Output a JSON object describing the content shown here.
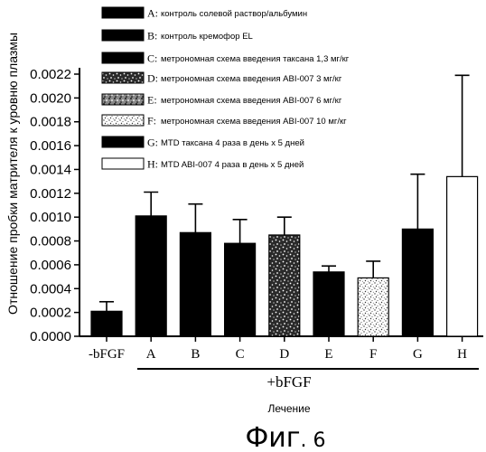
{
  "chart_data": {
    "type": "bar",
    "title": "",
    "ylabel": "Отношение пробки матрителя к уровню плазмы",
    "xlabel": "Лечение",
    "ylim": [
      0,
      0.0022
    ],
    "yticks": [
      "0.0000",
      "0.0002",
      "0.0004",
      "0.0006",
      "0.0008",
      "0.0010",
      "0.0012",
      "0.0014",
      "0.0016",
      "0.0018",
      "0.0020",
      "0.0022"
    ],
    "categories": [
      "-bFGF",
      "A",
      "B",
      "C",
      "D",
      "E",
      "F",
      "G",
      "H"
    ],
    "values": [
      0.00021,
      0.00101,
      0.00087,
      0.00078,
      0.00085,
      0.00054,
      0.00049,
      0.0009,
      0.00134
    ],
    "errors": [
      8e-05,
      0.0002,
      0.00024,
      0.0002,
      0.00015,
      5e-05,
      0.00014,
      0.00046,
      0.00085
    ],
    "fills": [
      "solid",
      "solid",
      "solid",
      "solid",
      "speckle-dense",
      "solid",
      "speckle-light",
      "solid",
      "white"
    ],
    "group_label": "+bFGF",
    "legend_position": "top",
    "legend": [
      {
        "letter": "A:",
        "label": "контроль солевой раствор/альбумин",
        "fill": "solid"
      },
      {
        "letter": "B:",
        "label": "контроль кремофор EL",
        "fill": "solid"
      },
      {
        "letter": "C:",
        "label": "метрономная схема введения таксана 1,3 мг/кг",
        "fill": "solid"
      },
      {
        "letter": "D:",
        "label": "метрономная схема введения ABI-007 3 мг/кг",
        "fill": "speckle-dense"
      },
      {
        "letter": "E:",
        "label": "метрономная схема введения ABI-007 6 мг/кг",
        "fill": "speckle-medium"
      },
      {
        "letter": "F:",
        "label": "метрономная схема введения ABI-007 10 мг/кг",
        "fill": "speckle-light"
      },
      {
        "letter": "G:",
        "label": "MTD таксана 4 раза в день х 5 дней",
        "fill": "solid"
      },
      {
        "letter": "H:",
        "label": "MTD ABI-007 4 раза в день х 5 дней",
        "fill": "white"
      }
    ]
  },
  "figure_caption": {
    "word": "Фиг",
    "number": ". 6"
  }
}
